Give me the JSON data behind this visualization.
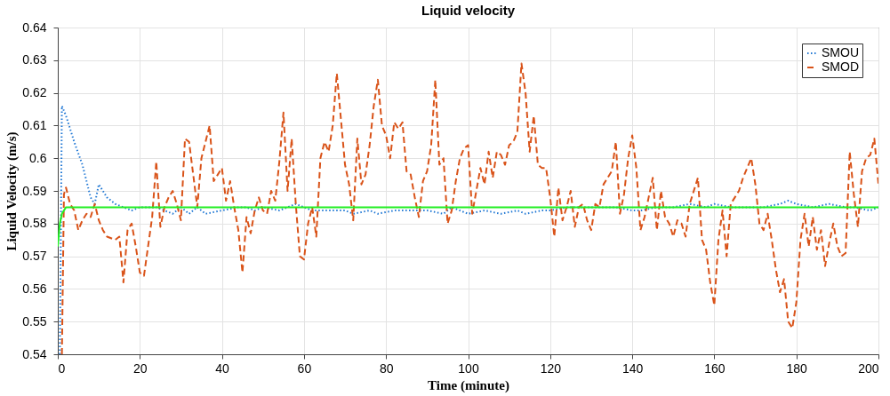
{
  "chart_data": {
    "type": "line",
    "title": "Liquid velocity",
    "xlabel": "Time (minute)",
    "ylabel": "Liquid Velocity (m/s)",
    "xlim": [
      0,
      200
    ],
    "xticks": [
      0,
      20,
      40,
      60,
      80,
      100,
      120,
      140,
      160,
      180,
      200
    ],
    "ylim": [
      0.54,
      0.64
    ],
    "yticks": [
      0.54,
      0.55,
      0.56,
      0.57,
      0.58,
      0.59,
      0.6,
      0.61,
      0.62,
      0.63,
      0.64
    ],
    "grid": true,
    "legend": "top right",
    "series": [
      {
        "name": "SMOU",
        "color": "#1f77d4",
        "line_style": "dotted",
        "x": [
          0.5,
          1,
          2,
          4,
          6,
          8,
          9,
          10,
          12,
          14,
          16,
          18,
          20,
          24,
          26,
          28,
          30,
          32,
          34,
          36,
          40,
          44,
          46,
          48,
          50,
          54,
          58,
          60,
          62,
          66,
          70,
          72,
          76,
          78,
          82,
          86,
          90,
          94,
          96,
          100,
          104,
          108,
          112,
          114,
          118,
          120,
          124,
          128,
          132,
          136,
          140,
          142,
          146,
          150,
          154,
          158,
          160,
          164,
          168,
          172,
          176,
          178,
          180,
          184,
          188,
          192,
          194,
          198,
          200
        ],
        "values": [
          0.54,
          0.616,
          0.613,
          0.605,
          0.598,
          0.588,
          0.586,
          0.592,
          0.588,
          0.586,
          0.585,
          0.584,
          0.585,
          0.585,
          0.584,
          0.583,
          0.585,
          0.583,
          0.585,
          0.583,
          0.584,
          0.585,
          0.585,
          0.584,
          0.585,
          0.584,
          0.586,
          0.585,
          0.584,
          0.584,
          0.584,
          0.583,
          0.584,
          0.583,
          0.584,
          0.584,
          0.584,
          0.583,
          0.585,
          0.583,
          0.584,
          0.583,
          0.584,
          0.583,
          0.584,
          0.584,
          0.585,
          0.585,
          0.585,
          0.585,
          0.584,
          0.584,
          0.585,
          0.585,
          0.586,
          0.585,
          0.586,
          0.585,
          0.585,
          0.585,
          0.586,
          0.587,
          0.586,
          0.585,
          0.586,
          0.585,
          0.585,
          0.584,
          0.585
        ]
      },
      {
        "name": "SMOD",
        "color": "#d95319",
        "line_style": "dashed",
        "x": [
          1,
          1.5,
          2,
          3,
          4,
          5,
          6,
          7,
          8,
          9,
          10,
          11,
          12,
          14,
          15,
          16,
          17,
          18,
          19,
          20,
          21,
          22,
          23,
          24,
          25,
          26,
          27,
          28,
          29,
          30,
          31,
          32,
          33,
          34,
          35,
          36,
          37,
          38,
          39,
          40,
          41,
          42,
          43,
          44,
          45,
          46,
          47,
          48,
          49,
          50,
          51,
          52,
          53,
          54,
          55,
          56,
          57,
          58,
          59,
          60,
          61,
          62,
          63,
          64,
          65,
          66,
          67,
          68,
          69,
          70,
          71,
          72,
          73,
          74,
          75,
          76,
          77,
          78,
          79,
          80,
          81,
          82,
          83,
          84,
          85,
          86,
          87,
          88,
          89,
          90,
          91,
          92,
          93,
          94,
          95,
          96,
          97,
          98,
          99,
          100,
          101,
          102,
          103,
          104,
          105,
          106,
          107,
          108,
          109,
          110,
          111,
          112,
          113,
          114,
          115,
          116,
          117,
          118,
          119,
          120,
          121,
          122,
          123,
          124,
          125,
          126,
          127,
          128,
          129,
          130,
          131,
          132,
          133,
          134,
          135,
          136,
          137,
          138,
          139,
          140,
          141,
          142,
          143,
          144,
          145,
          146,
          147,
          148,
          149,
          150,
          151,
          152,
          153,
          154,
          155,
          156,
          157,
          158,
          159,
          160,
          161,
          162,
          163,
          164,
          165,
          166,
          167,
          168,
          169,
          170,
          171,
          172,
          173,
          174,
          175,
          176,
          177,
          178,
          179,
          180,
          181,
          182,
          183,
          184,
          185,
          186,
          187,
          188,
          189,
          190,
          191,
          192,
          193,
          194,
          195,
          196,
          197,
          198,
          199,
          200
        ],
        "values": [
          0.54,
          0.589,
          0.591,
          0.586,
          0.584,
          0.578,
          0.581,
          0.583,
          0.582,
          0.586,
          0.581,
          0.578,
          0.576,
          0.575,
          0.576,
          0.562,
          0.578,
          0.58,
          0.573,
          0.565,
          0.564,
          0.573,
          0.582,
          0.599,
          0.579,
          0.585,
          0.588,
          0.59,
          0.586,
          0.581,
          0.606,
          0.605,
          0.595,
          0.585,
          0.6,
          0.605,
          0.61,
          0.593,
          0.595,
          0.597,
          0.587,
          0.593,
          0.585,
          0.578,
          0.565,
          0.582,
          0.577,
          0.584,
          0.588,
          0.584,
          0.583,
          0.59,
          0.587,
          0.599,
          0.614,
          0.59,
          0.606,
          0.586,
          0.57,
          0.569,
          0.58,
          0.585,
          0.576,
          0.6,
          0.605,
          0.602,
          0.61,
          0.626,
          0.612,
          0.598,
          0.592,
          0.581,
          0.606,
          0.592,
          0.595,
          0.604,
          0.616,
          0.624,
          0.61,
          0.607,
          0.6,
          0.611,
          0.609,
          0.611,
          0.596,
          0.595,
          0.588,
          0.582,
          0.593,
          0.596,
          0.604,
          0.624,
          0.598,
          0.6,
          0.58,
          0.584,
          0.593,
          0.6,
          0.603,
          0.604,
          0.583,
          0.59,
          0.597,
          0.592,
          0.602,
          0.594,
          0.602,
          0.601,
          0.598,
          0.604,
          0.605,
          0.608,
          0.629,
          0.62,
          0.602,
          0.613,
          0.598,
          0.597,
          0.597,
          0.588,
          0.576,
          0.591,
          0.581,
          0.585,
          0.59,
          0.579,
          0.585,
          0.586,
          0.581,
          0.578,
          0.586,
          0.585,
          0.592,
          0.594,
          0.596,
          0.605,
          0.583,
          0.589,
          0.6,
          0.607,
          0.597,
          0.578,
          0.582,
          0.588,
          0.594,
          0.578,
          0.59,
          0.582,
          0.58,
          0.576,
          0.581,
          0.58,
          0.576,
          0.586,
          0.59,
          0.594,
          0.575,
          0.572,
          0.562,
          0.555,
          0.575,
          0.584,
          0.57,
          0.586,
          0.588,
          0.59,
          0.594,
          0.597,
          0.6,
          0.592,
          0.58,
          0.578,
          0.583,
          0.575,
          0.566,
          0.559,
          0.563,
          0.55,
          0.548,
          0.556,
          0.575,
          0.583,
          0.573,
          0.582,
          0.572,
          0.578,
          0.567,
          0.574,
          0.58,
          0.573,
          0.57,
          0.571,
          0.602,
          0.589,
          0.579,
          0.596,
          0.6,
          0.601,
          0.606,
          0.592
        ]
      },
      {
        "color": "#22ee22",
        "line_style": "solid",
        "x": [
          0,
          0.5,
          1,
          2,
          3,
          4,
          50,
          100,
          150,
          200
        ],
        "values": [
          0.573,
          0.58,
          0.583,
          0.585,
          0.585,
          0.585,
          0.585,
          0.585,
          0.585,
          0.585
        ]
      }
    ]
  }
}
